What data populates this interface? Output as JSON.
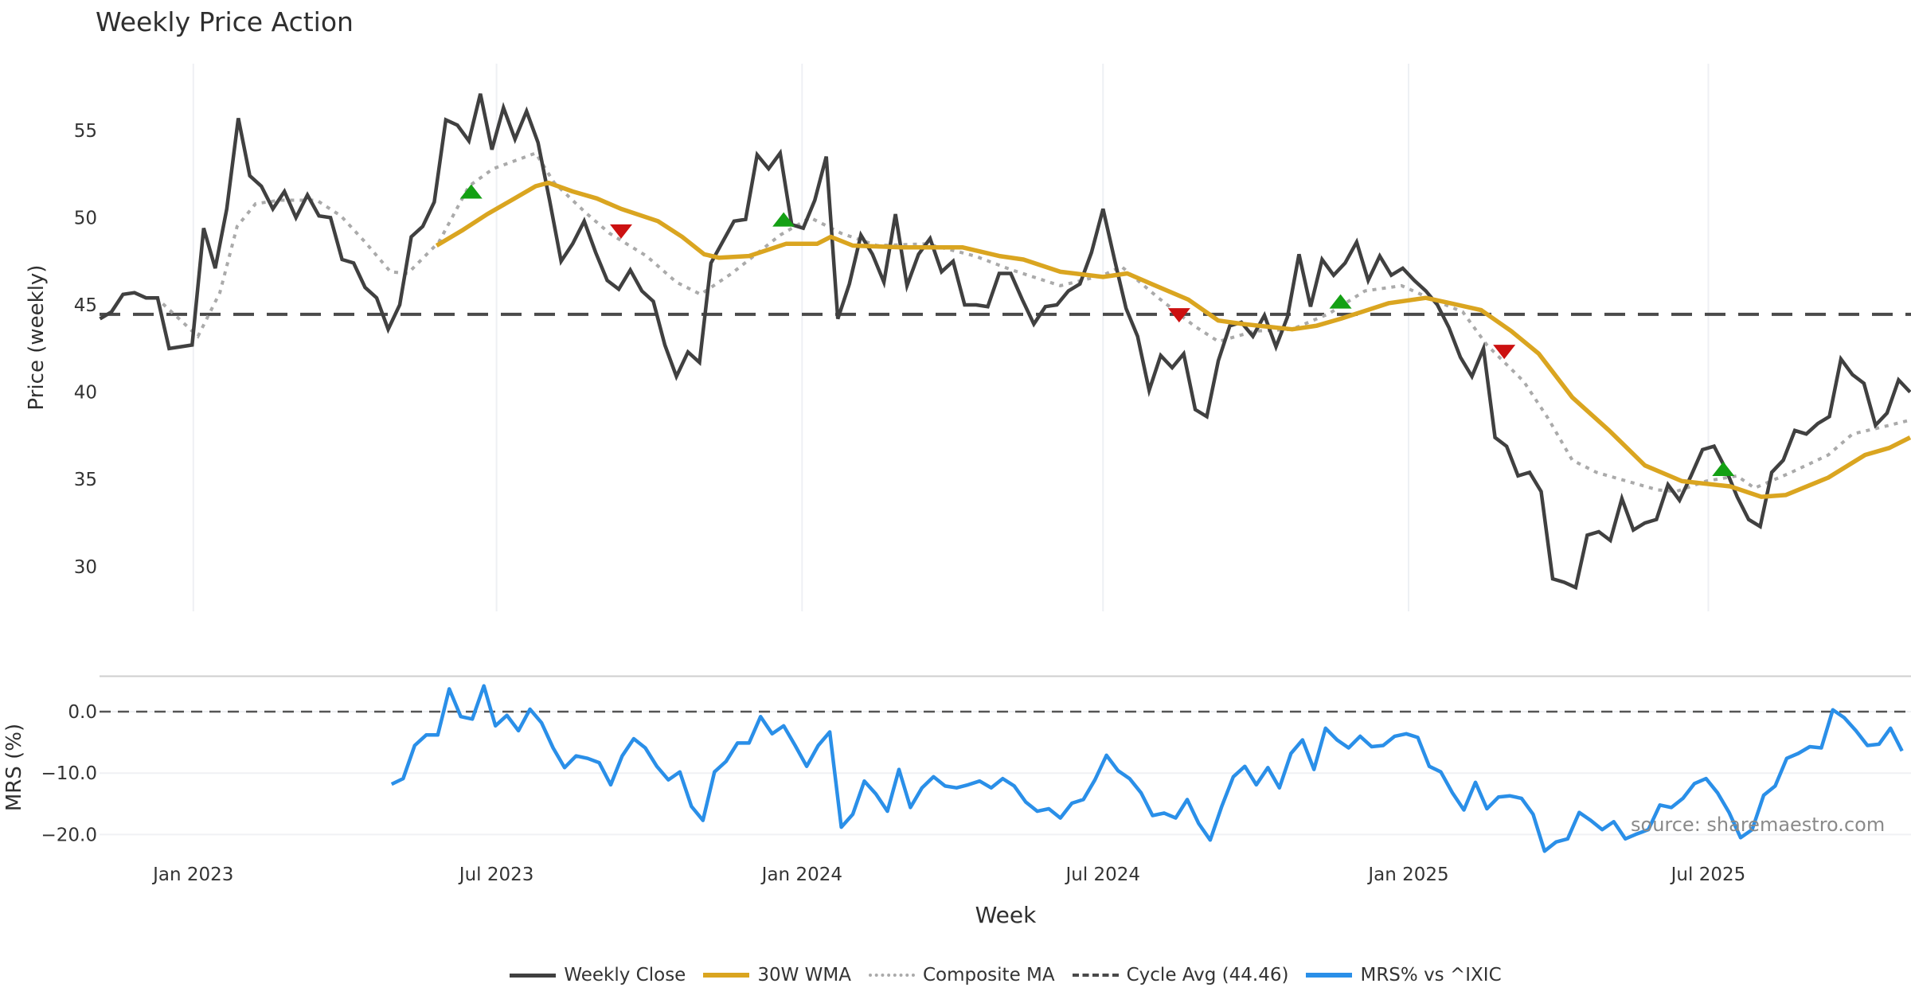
{
  "chart_data": [
    {
      "type": "line",
      "title": "Weekly Price Action",
      "ylabel": "Price (weekly)",
      "xlabel": "Week",
      "x_unit": "week index",
      "xlim": [
        0,
        157
      ],
      "ylim": [
        27.3,
        58.6
      ],
      "yticks": [
        30,
        35,
        40,
        45,
        50,
        55
      ],
      "xticks": [
        {
          "label": "Jan 2023",
          "week": 8.1
        },
        {
          "label": "Jul 2023",
          "week": 34.4
        },
        {
          "label": "Jan 2024",
          "week": 60.9
        },
        {
          "label": "Jul 2024",
          "week": 87.0
        },
        {
          "label": "Jan 2025",
          "week": 113.5
        },
        {
          "label": "Jul 2025",
          "week": 139.5
        }
      ],
      "grid": "vertical",
      "series": [
        {
          "name": "Weekly Close",
          "color": "#404040",
          "style": "solid",
          "start_week": 0,
          "values": [
            44.2,
            44.6,
            45.6,
            45.7,
            45.4,
            45.4,
            42.5,
            42.6,
            42.7,
            49.4,
            47.1,
            50.5,
            55.7,
            52.4,
            51.8,
            50.5,
            51.5,
            50.0,
            51.3,
            50.1,
            50.0,
            47.6,
            47.4,
            46.0,
            45.4,
            43.6,
            45.0,
            48.9,
            49.5,
            50.9,
            55.6,
            55.3,
            54.4,
            57.1,
            53.9,
            56.3,
            54.5,
            56.1,
            54.3,
            51.0,
            47.5,
            48.5,
            49.8,
            48.0,
            46.4,
            45.9,
            47.0,
            45.8,
            45.2,
            42.7,
            40.9,
            42.3,
            41.7,
            47.4,
            48.6,
            49.8,
            49.9,
            53.6,
            52.8,
            53.7,
            49.6,
            49.4,
            51.0,
            53.5,
            44.2,
            46.2,
            49.0,
            47.9,
            46.3,
            50.2,
            46.1,
            47.9,
            48.8,
            46.9,
            47.5,
            45.0,
            45.0,
            44.9,
            46.8,
            46.8,
            45.3,
            43.9,
            44.9,
            45.0,
            45.8,
            46.2,
            48.0,
            50.5,
            47.6,
            44.8,
            43.2,
            40.1,
            42.1,
            41.4,
            42.2,
            39.0,
            38.6,
            41.8,
            43.8,
            44.0,
            43.2,
            44.4,
            42.6,
            44.3,
            47.9,
            44.9,
            47.6,
            46.7,
            47.4,
            48.6,
            46.4,
            47.8,
            46.7,
            47.1,
            46.4,
            45.8,
            45.0,
            43.7,
            42.0,
            40.9,
            42.5,
            37.4,
            36.9,
            35.2,
            35.4,
            34.3,
            29.3,
            29.1,
            28.8,
            31.8,
            32.0,
            31.5,
            33.9,
            32.1,
            32.5,
            32.7,
            34.7,
            33.8,
            35.2,
            36.7,
            36.9,
            35.6,
            34.0,
            32.7,
            32.3,
            35.4,
            36.1,
            37.8,
            37.6,
            38.2,
            38.6,
            41.9,
            41.0,
            40.5,
            38.1,
            38.8,
            40.7,
            40.0
          ]
        },
        {
          "name": "30W WMA",
          "color": "#DAA520",
          "style": "solid",
          "points": [
            [
              29.2,
              48.4
            ],
            [
              31.5,
              49.3
            ],
            [
              33.6,
              50.2
            ],
            [
              35.7,
              51.0
            ],
            [
              37.8,
              51.8
            ],
            [
              38.9,
              52.0
            ],
            [
              41,
              51.5
            ],
            [
              43.1,
              51.1
            ],
            [
              45.2,
              50.5
            ],
            [
              48.4,
              49.8
            ],
            [
              50.5,
              48.9
            ],
            [
              52.4,
              47.9
            ],
            [
              53.7,
              47.7
            ],
            [
              56.3,
              47.8
            ],
            [
              59.5,
              48.5
            ],
            [
              62.2,
              48.5
            ],
            [
              63.4,
              48.9
            ],
            [
              65.3,
              48.4
            ],
            [
              69.6,
              48.3
            ],
            [
              74.8,
              48.3
            ],
            [
              78,
              47.8
            ],
            [
              80.1,
              47.6
            ],
            [
              83.3,
              46.9
            ],
            [
              87,
              46.6
            ],
            [
              89.1,
              46.8
            ],
            [
              91.2,
              46.2
            ],
            [
              94.4,
              45.3
            ],
            [
              97,
              44.1
            ],
            [
              99.2,
              43.9
            ],
            [
              103.4,
              43.6
            ],
            [
              105.5,
              43.8
            ],
            [
              107.6,
              44.2
            ],
            [
              111.8,
              45.1
            ],
            [
              115,
              45.4
            ],
            [
              117.1,
              45.1
            ],
            [
              119.8,
              44.7
            ],
            [
              122.4,
              43.5
            ],
            [
              124.8,
              42.2
            ],
            [
              127.7,
              39.7
            ],
            [
              130.9,
              37.8
            ],
            [
              134,
              35.8
            ],
            [
              137.2,
              34.9
            ],
            [
              141.4,
              34.6
            ],
            [
              144.1,
              34.0
            ],
            [
              146.2,
              34.1
            ],
            [
              149.9,
              35.1
            ],
            [
              153.1,
              36.4
            ],
            [
              155.2,
              36.8
            ],
            [
              157,
              37.4
            ]
          ]
        },
        {
          "name": "Composite MA",
          "color": "#aaaaaa",
          "style": "dotted",
          "points": [
            [
              4,
              45.4
            ],
            [
              4.9,
              45.4
            ],
            [
              8.5,
              43.2
            ],
            [
              10.4,
              45.7
            ],
            [
              11.9,
              49.5
            ],
            [
              13.5,
              50.8
            ],
            [
              15.6,
              51.0
            ],
            [
              18.8,
              51.0
            ],
            [
              20.9,
              50.1
            ],
            [
              23,
              48.6
            ],
            [
              25.2,
              46.9
            ],
            [
              26.7,
              46.8
            ],
            [
              29.4,
              48.6
            ],
            [
              32,
              51.8
            ],
            [
              34.1,
              52.8
            ],
            [
              37.8,
              53.7
            ],
            [
              39.4,
              52.0
            ],
            [
              42.1,
              50.3
            ],
            [
              44.2,
              49.1
            ],
            [
              47.4,
              47.8
            ],
            [
              50,
              46.3
            ],
            [
              52.1,
              45.6
            ],
            [
              54.8,
              46.8
            ],
            [
              59,
              49.0
            ],
            [
              61.6,
              50.0
            ],
            [
              64.3,
              49.1
            ],
            [
              67.4,
              48.4
            ],
            [
              71.7,
              48.5
            ],
            [
              75.9,
              47.8
            ],
            [
              79.1,
              47.0
            ],
            [
              83.3,
              46.1
            ],
            [
              87,
              46.7
            ],
            [
              88.6,
              47.2
            ],
            [
              91.8,
              45.4
            ],
            [
              94.9,
              43.8
            ],
            [
              97,
              42.9
            ],
            [
              100.2,
              43.5
            ],
            [
              103.4,
              43.6
            ],
            [
              106.6,
              44.5
            ],
            [
              109.7,
              45.8
            ],
            [
              112.9,
              46.1
            ],
            [
              115.6,
              45.3
            ],
            [
              118.2,
              44.6
            ],
            [
              120.3,
              42.7
            ],
            [
              123.5,
              40.6
            ],
            [
              125.6,
              38.5
            ],
            [
              127.7,
              36.1
            ],
            [
              129.8,
              35.4
            ],
            [
              131.9,
              35.0
            ],
            [
              135.1,
              34.4
            ],
            [
              136.7,
              34.3
            ],
            [
              139.3,
              34.9
            ],
            [
              142,
              35.2
            ],
            [
              143.5,
              34.5
            ],
            [
              146.7,
              35.4
            ],
            [
              149.9,
              36.4
            ],
            [
              152,
              37.6
            ],
            [
              154.6,
              38.0
            ],
            [
              157,
              38.4
            ]
          ]
        },
        {
          "name": "Cycle Avg (44.46)",
          "color": "#4a4a4a",
          "style": "dashed",
          "value": 44.46
        }
      ],
      "signals": [
        {
          "type": "buy",
          "week": 32.2,
          "price": 51.5
        },
        {
          "type": "sell",
          "week": 45.2,
          "price": 49.2
        },
        {
          "type": "buy",
          "week": 59.3,
          "price": 49.9
        },
        {
          "type": "sell",
          "week": 93.6,
          "price": 44.4
        },
        {
          "type": "buy",
          "week": 107.6,
          "price": 45.2
        },
        {
          "type": "sell",
          "week": 121.8,
          "price": 42.3
        },
        {
          "type": "buy",
          "week": 140.8,
          "price": 35.6
        }
      ],
      "signal_colors": {
        "buy": "#14a014",
        "sell": "#cc1111"
      }
    },
    {
      "type": "line",
      "ylabel": "MRS (%)",
      "ylim": [
        -23.5,
        5.8
      ],
      "yticks": [
        {
          "value": 0,
          "label": "0.0"
        },
        {
          "value": -10,
          "label": "−10.0"
        },
        {
          "value": -20,
          "label": "−20.0"
        }
      ],
      "series": [
        {
          "name": "MRS% vs ^IXIC",
          "color": "#2a8fe8",
          "style": "solid",
          "start_week": 25.3,
          "values": [
            -11.8,
            -10.9,
            -5.5,
            -3.8,
            -3.8,
            3.7,
            -0.8,
            -1.2,
            4.2,
            -2.3,
            -0.6,
            -3.1,
            0.4,
            -1.8,
            -5.9,
            -9.1,
            -7.2,
            -7.6,
            -8.3,
            -11.9,
            -7.2,
            -4.4,
            -5.9,
            -8.9,
            -11.1,
            -9.8,
            -15.4,
            -17.7,
            -9.8,
            -8.1,
            -5.1,
            -5.1,
            -0.8,
            -3.6,
            -2.3,
            -5.5,
            -8.9,
            -5.5,
            -3.3,
            -18.8,
            -16.7,
            -11.3,
            -13.4,
            -16.2,
            -9.4,
            -15.6,
            -12.4,
            -10.6,
            -12.1,
            -12.4,
            -11.9,
            -11.3,
            -12.4,
            -10.9,
            -12.1,
            -14.7,
            -16.2,
            -15.8,
            -17.3,
            -14.9,
            -14.3,
            -11.1,
            -7.1,
            -9.6,
            -10.9,
            -13.2,
            -16.9,
            -16.5,
            -17.3,
            -14.3,
            -18.2,
            -20.9,
            -15.4,
            -10.6,
            -8.9,
            -11.9,
            -9.1,
            -12.4,
            -6.8,
            -4.6,
            -9.4,
            -2.7,
            -4.6,
            -5.9,
            -4.0,
            -5.7,
            -5.5,
            -4.0,
            -3.6,
            -4.2,
            -8.9,
            -9.8,
            -13.2,
            -16.0,
            -11.5,
            -15.8,
            -13.9,
            -13.7,
            -14.1,
            -16.7,
            -22.7,
            -21.2,
            -20.7,
            -16.4,
            -17.7,
            -19.2,
            -17.9,
            -20.7,
            -19.9,
            -19.2,
            -15.2,
            -15.6,
            -14.1,
            -11.7,
            -10.9,
            -13.2,
            -16.4,
            -20.5,
            -19.2,
            -13.6,
            -12.1,
            -7.6,
            -6.8,
            -5.7,
            -5.9,
            0.3,
            -1.0,
            -3.1,
            -5.5,
            -5.3,
            -2.7,
            -6.4
          ]
        }
      ],
      "reference_line": 0
    }
  ],
  "source": "source: sharemaestro.com",
  "legend": [
    {
      "label": "Weekly Close",
      "color": "#404040",
      "style": "solid"
    },
    {
      "label": "30W WMA",
      "color": "#DAA520",
      "style": "solid"
    },
    {
      "label": "Composite MA",
      "color": "#aaaaaa",
      "style": "dotted"
    },
    {
      "label": "Cycle Avg (44.46)",
      "color": "#4a4a4a",
      "style": "dashed"
    },
    {
      "label": "MRS% vs ^IXIC",
      "color": "#2a8fe8",
      "style": "solid"
    }
  ]
}
